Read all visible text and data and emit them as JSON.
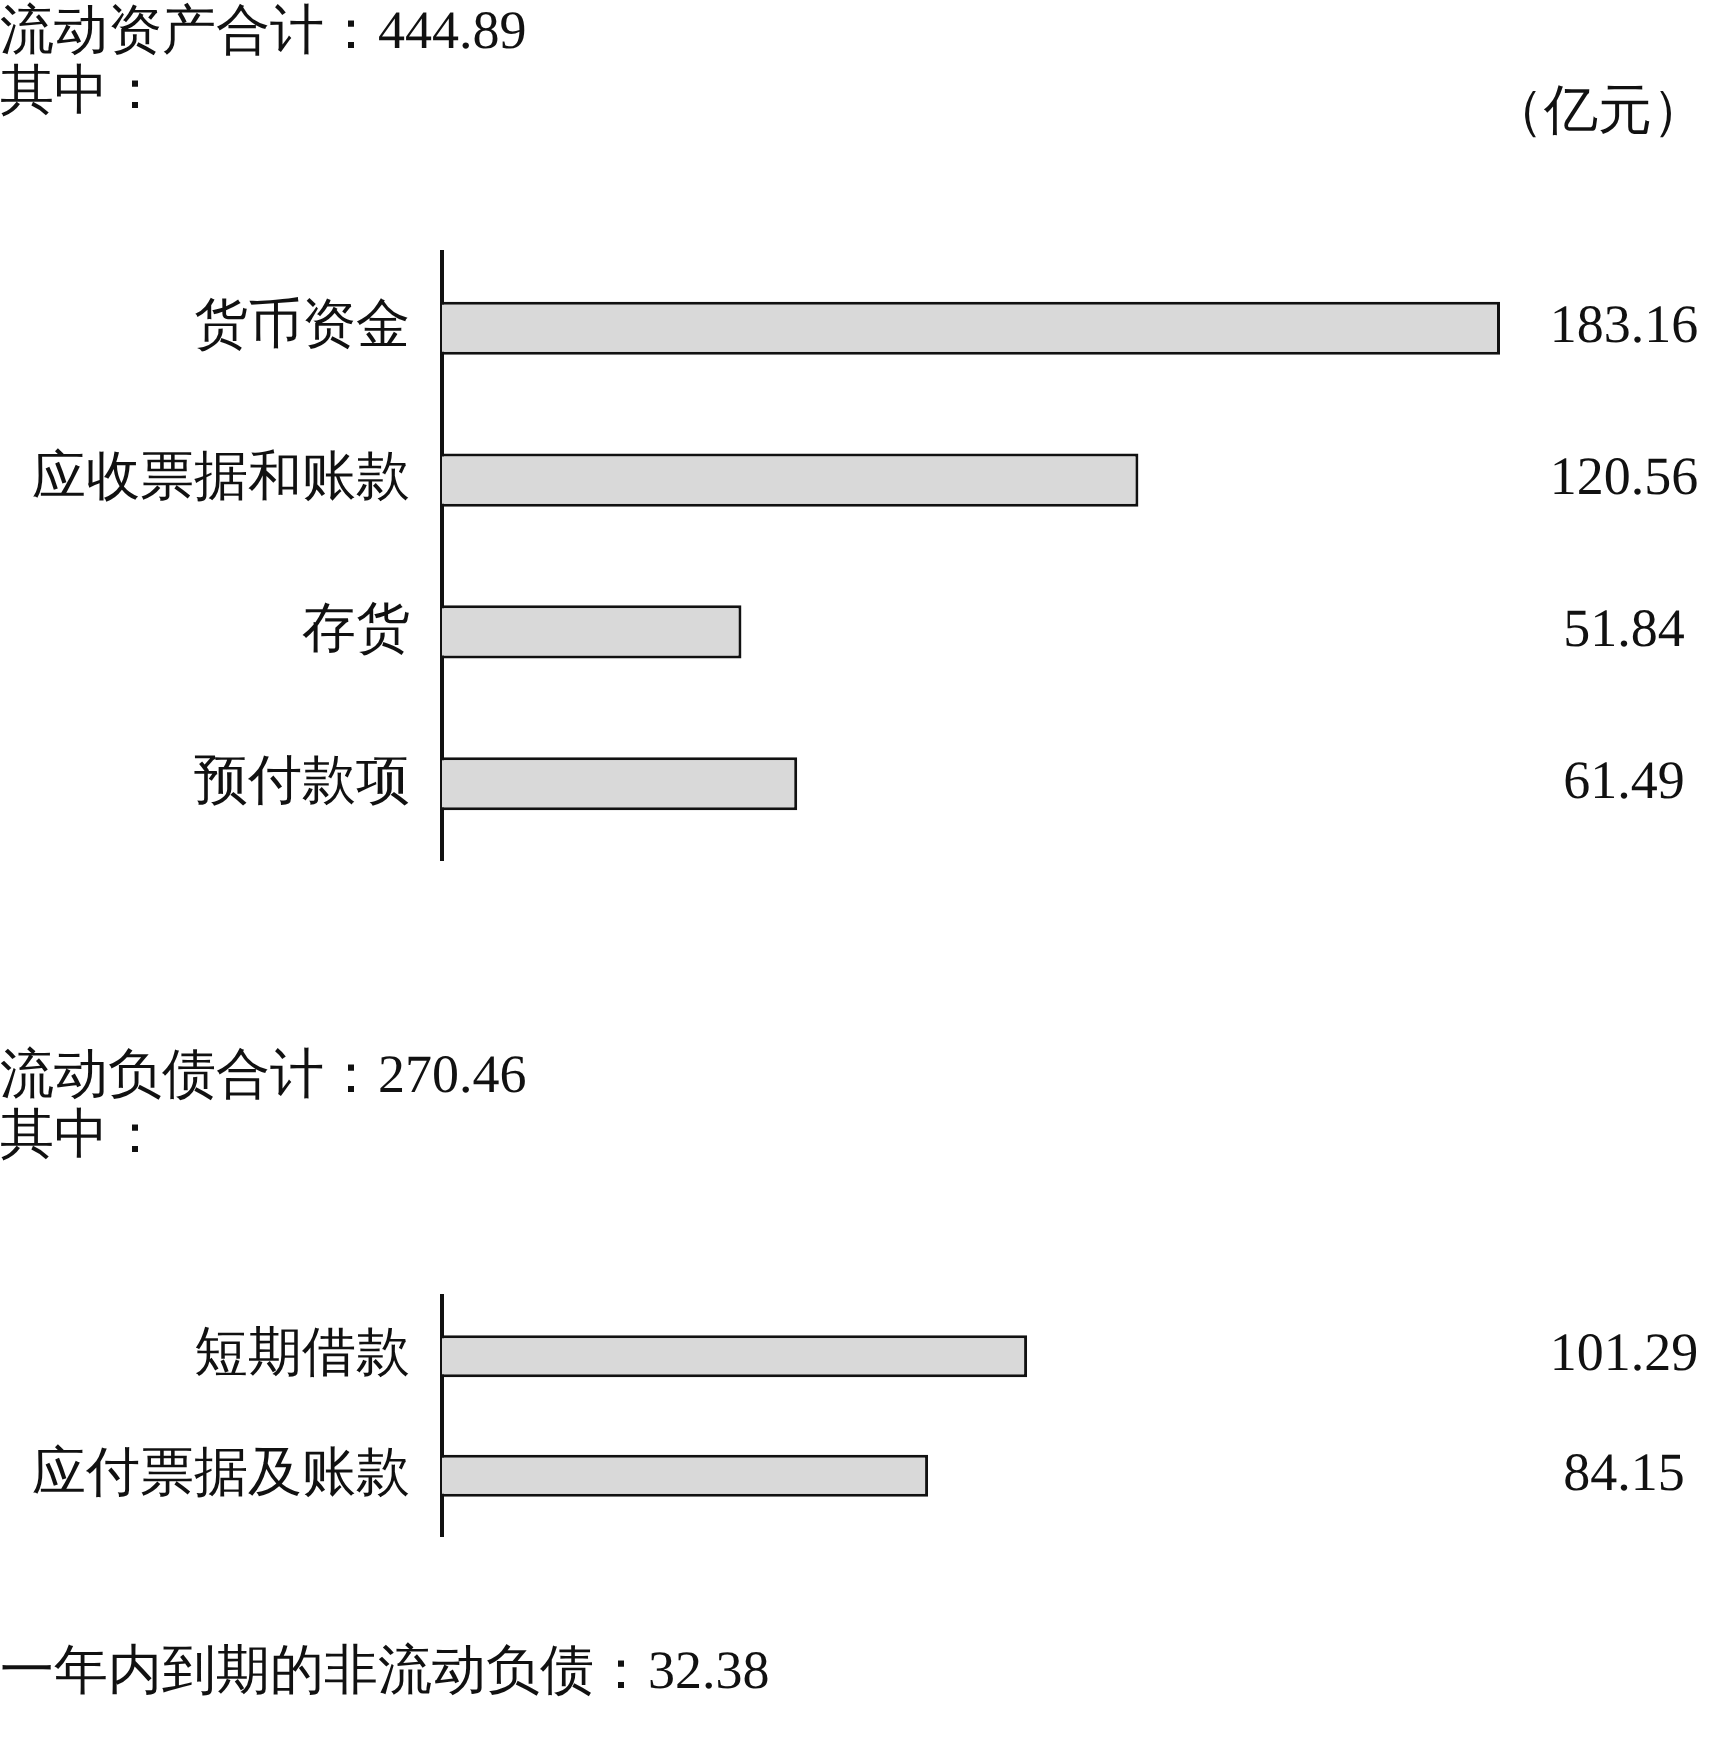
{
  "chart_data": [
    {
      "type": "bar",
      "orientation": "horizontal",
      "title": "流动资产合计：444.89",
      "subtitle": "其中：",
      "annotations": [
        "（亿元）"
      ],
      "categories": [
        "货币资金",
        "应收票据和账款",
        "存货",
        "预付款项"
      ],
      "values": [
        183.16,
        120.56,
        51.84,
        61.49
      ],
      "color": "#d9d9d9",
      "data_labels": true,
      "tick_labels": "y"
    },
    {
      "type": "bar",
      "orientation": "horizontal",
      "title": "流动负债合计：270.46",
      "subtitle": "其中：",
      "annotations": [
        "一年内到期的非流动负债：32.38"
      ],
      "categories": [
        "短期借款",
        "应付票据及账款"
      ],
      "values": [
        101.29,
        84.15
      ],
      "color": "#d9d9d9",
      "data_labels": true,
      "tick_labels": "y"
    }
  ]
}
